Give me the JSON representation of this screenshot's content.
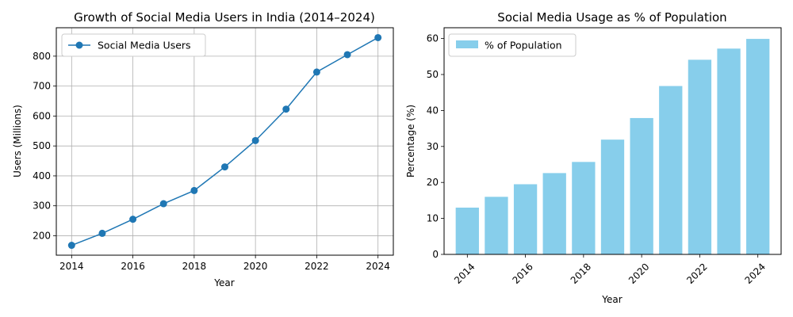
{
  "chart_data": [
    {
      "type": "line",
      "title": "Growth of Social Media Users in India (2014–2024)",
      "xlabel": "Year",
      "ylabel": "Users (Millions)",
      "x": [
        2014,
        2015,
        2016,
        2017,
        2018,
        2019,
        2020,
        2021,
        2022,
        2023,
        2024
      ],
      "series": [
        {
          "name": "Social Media Users",
          "values": [
            168,
            208,
            255,
            307,
            351,
            430,
            518,
            623,
            747,
            805,
            862
          ],
          "color": "#1f77b4",
          "marker": "circle"
        }
      ],
      "xlim": [
        2013.5,
        2024.5
      ],
      "ylim": [
        135,
        895
      ],
      "xticks": [
        2014,
        2016,
        2018,
        2020,
        2022,
        2024
      ],
      "yticks": [
        200,
        300,
        400,
        500,
        600,
        700,
        800
      ],
      "grid": true,
      "legend": "top-left"
    },
    {
      "type": "bar",
      "title": "Social Media Usage as % of Population",
      "xlabel": "Year",
      "ylabel": "Percentage (%)",
      "categories": [
        2014,
        2015,
        2016,
        2017,
        2018,
        2019,
        2020,
        2021,
        2022,
        2023,
        2024
      ],
      "series": [
        {
          "name": "% of Population",
          "values": [
            13.0,
            16.0,
            19.5,
            22.6,
            25.7,
            31.9,
            37.9,
            46.8,
            54.1,
            57.2,
            59.9
          ],
          "color": "#87ceeb"
        }
      ],
      "ylim": [
        0,
        63
      ],
      "xticks": [
        2014,
        2016,
        2018,
        2020,
        2022,
        2024
      ],
      "yticks": [
        0,
        10,
        20,
        30,
        40,
        50,
        60
      ],
      "xtick_rotation": 45,
      "grid": false,
      "legend": "top-left"
    }
  ]
}
